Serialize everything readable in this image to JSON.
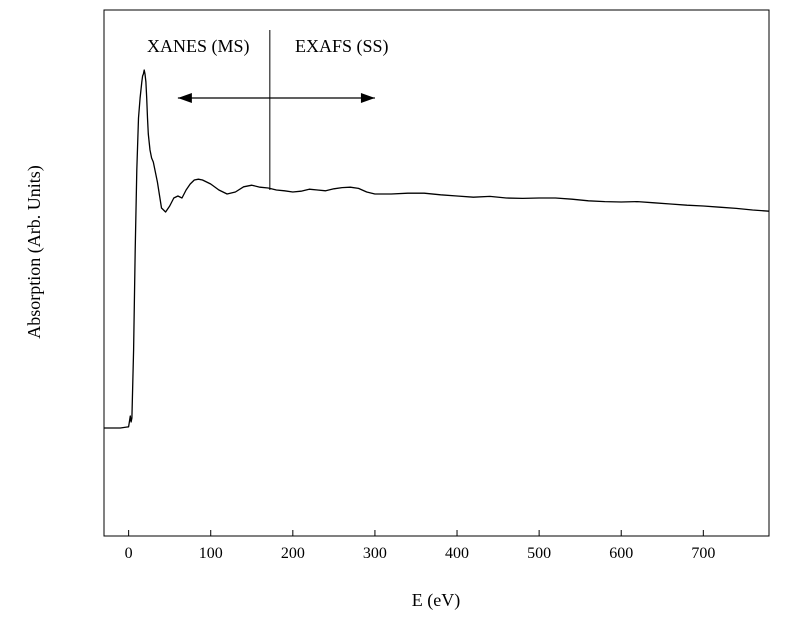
{
  "chart_data": {
    "type": "line",
    "title": "",
    "xlabel": "E (eV)",
    "ylabel": "Absorption (Arb. Units)",
    "xlim": [
      -30,
      780
    ],
    "ylim": [
      0,
      1
    ],
    "xticks": [
      0,
      100,
      200,
      300,
      400,
      500,
      600,
      700
    ],
    "yticks": [],
    "grid": false,
    "legend": "none",
    "line_color": "#000000",
    "annotations": {
      "xanes_label": "XANES (MS)",
      "exafs_label": "EXAFS (SS)",
      "divider_x": 172,
      "arrow_range": [
        60,
        300
      ]
    },
    "series": [
      {
        "x": [
          -30,
          -10,
          0,
          2,
          3,
          4,
          6,
          8,
          10,
          12,
          14,
          16,
          17,
          18,
          19,
          20,
          21,
          22,
          23,
          24,
          26,
          28,
          30,
          35,
          40,
          45,
          50,
          55,
          60,
          65,
          70,
          75,
          80,
          85,
          90,
          100,
          110,
          120,
          130,
          140,
          150,
          160,
          170,
          180,
          190,
          200,
          210,
          220,
          230,
          240,
          250,
          260,
          270,
          280,
          290,
          300,
          320,
          340,
          360,
          380,
          400,
          420,
          440,
          460,
          480,
          500,
          520,
          540,
          560,
          580,
          600,
          620,
          640,
          660,
          680,
          700,
          720,
          740,
          760,
          780
        ],
        "y": [
          0.105,
          0.105,
          0.108,
          0.135,
          0.12,
          0.13,
          0.3,
          0.55,
          0.75,
          0.88,
          0.93,
          0.97,
          0.985,
          0.99,
          1.0,
          0.99,
          0.97,
          0.93,
          0.88,
          0.84,
          0.8,
          0.78,
          0.77,
          0.72,
          0.655,
          0.645,
          0.66,
          0.68,
          0.685,
          0.68,
          0.7,
          0.715,
          0.725,
          0.727,
          0.725,
          0.715,
          0.7,
          0.69,
          0.695,
          0.708,
          0.712,
          0.707,
          0.705,
          0.7,
          0.698,
          0.695,
          0.697,
          0.702,
          0.7,
          0.698,
          0.703,
          0.706,
          0.707,
          0.704,
          0.695,
          0.69,
          0.69,
          0.692,
          0.692,
          0.688,
          0.685,
          0.682,
          0.684,
          0.68,
          0.679,
          0.68,
          0.68,
          0.677,
          0.673,
          0.671,
          0.67,
          0.671,
          0.668,
          0.665,
          0.662,
          0.66,
          0.657,
          0.654,
          0.65,
          0.647
        ]
      }
    ]
  }
}
